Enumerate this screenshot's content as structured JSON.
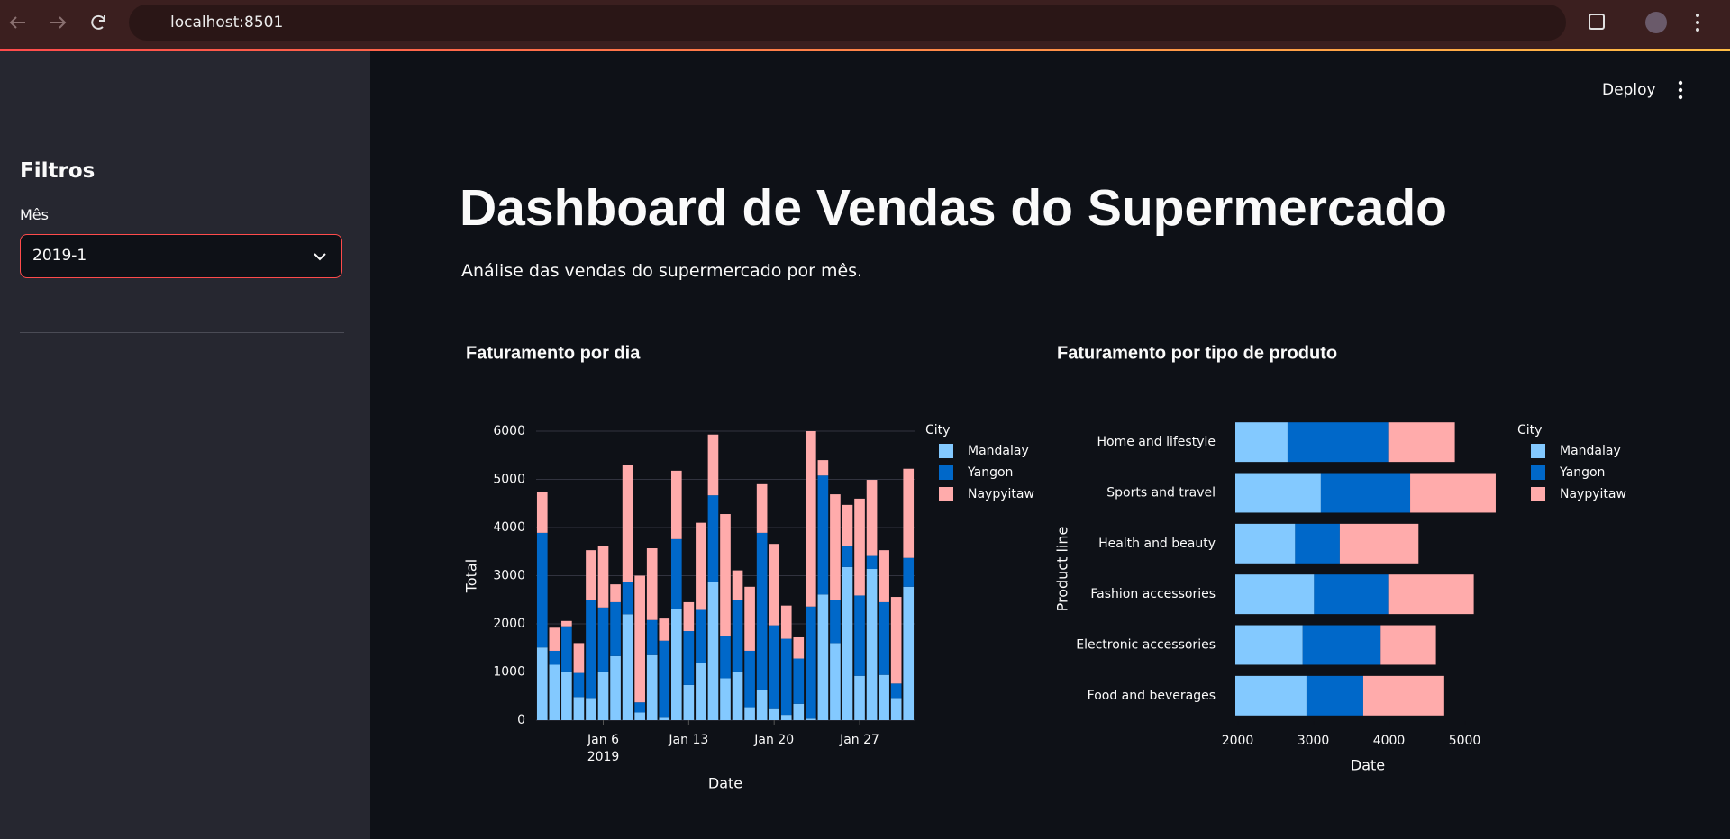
{
  "browser": {
    "url": "localhost:8501"
  },
  "header": {
    "deploy": "Deploy"
  },
  "sidebar": {
    "title": "Filtros",
    "filter_label": "Mês",
    "filter_value": "2019-1"
  },
  "main": {
    "title": "Dashboard de Vendas do Supermercado",
    "subtitle": "Análise das vendas do supermercado por mês."
  },
  "chart_data": [
    {
      "type": "bar",
      "orientation": "v",
      "title": "Faturamento por dia",
      "x_label": "Date",
      "y_label": "Total",
      "legend_title": "City",
      "grid": true,
      "x": [
        "2019-01-01",
        "2019-01-02",
        "2019-01-03",
        "2019-01-04",
        "2019-01-05",
        "2019-01-06",
        "2019-01-07",
        "2019-01-08",
        "2019-01-09",
        "2019-01-10",
        "2019-01-11",
        "2019-01-12",
        "2019-01-13",
        "2019-01-14",
        "2019-01-15",
        "2019-01-16",
        "2019-01-17",
        "2019-01-18",
        "2019-01-19",
        "2019-01-20",
        "2019-01-21",
        "2019-01-22",
        "2019-01-23",
        "2019-01-24",
        "2019-01-25",
        "2019-01-26",
        "2019-01-27",
        "2019-01-28",
        "2019-01-29",
        "2019-01-30",
        "2019-01-31"
      ],
      "xlim": [
        "2018-12-31T12:00:00Z",
        "2019-01-31T12:00:00Z"
      ],
      "xticks": [
        {
          "value": "2019-01-06",
          "label": "Jan 6"
        },
        {
          "value": "2019-01-13",
          "label": "Jan 13"
        },
        {
          "value": "2019-01-20",
          "label": "Jan 20"
        },
        {
          "value": "2019-01-27",
          "label": "Jan 27"
        }
      ],
      "xtick_year": "2019",
      "ylim": [
        0,
        6000
      ],
      "yticks": [
        0,
        1000,
        2000,
        3000,
        4000,
        5000,
        6000
      ],
      "series": [
        {
          "name": "Mandalay",
          "color": "#83c9ff",
          "values": [
            1510,
            1150,
            1010,
            480,
            460,
            1010,
            1330,
            2200,
            160,
            1350,
            50,
            2310,
            730,
            1190,
            2860,
            870,
            1010,
            270,
            620,
            230,
            110,
            340,
            30,
            2610,
            1600,
            3180,
            920,
            3140,
            940,
            460,
            2770
          ]
        },
        {
          "name": "Yangon",
          "color": "#0068c9",
          "values": [
            2380,
            290,
            940,
            500,
            2040,
            1330,
            1120,
            660,
            210,
            730,
            1600,
            1450,
            1120,
            1100,
            1810,
            870,
            1490,
            1170,
            3270,
            1740,
            1580,
            940,
            2330,
            2470,
            900,
            440,
            1670,
            270,
            1510,
            300,
            600
          ]
        },
        {
          "name": "Naypyitaw",
          "color": "#ffabab",
          "values": [
            850,
            480,
            110,
            620,
            1030,
            1280,
            370,
            2430,
            2630,
            1490,
            460,
            1420,
            600,
            1810,
            1260,
            2540,
            610,
            1330,
            1010,
            1690,
            690,
            440,
            3640,
            320,
            2190,
            850,
            2010,
            1580,
            1080,
            1800,
            1850
          ]
        }
      ]
    },
    {
      "type": "bar",
      "orientation": "h",
      "title": "Faturamento por tipo de produto",
      "x_label": "Date",
      "y_label": "Product line",
      "legend_title": "City",
      "grid": false,
      "categories": [
        "Home and lifestyle",
        "Sports and travel",
        "Health and beauty",
        "Fashion accessories",
        "Electronic accessories",
        "Food and beverages"
      ],
      "xlim": [
        1970,
        5470
      ],
      "xticks": [
        2000,
        3000,
        4000,
        5000
      ],
      "series": [
        {
          "name": "Mandalay",
          "color": "#83c9ff",
          "values": [
            2660,
            3100,
            2760,
            3010,
            2860,
            2910
          ]
        },
        {
          "name": "Yangon",
          "color": "#0068c9",
          "values": [
            1330,
            1180,
            590,
            980,
            1030,
            750
          ]
        },
        {
          "name": "Naypyitaw",
          "color": "#ffabab",
          "values": [
            880,
            1130,
            1040,
            1130,
            730,
            1070
          ]
        }
      ]
    }
  ]
}
